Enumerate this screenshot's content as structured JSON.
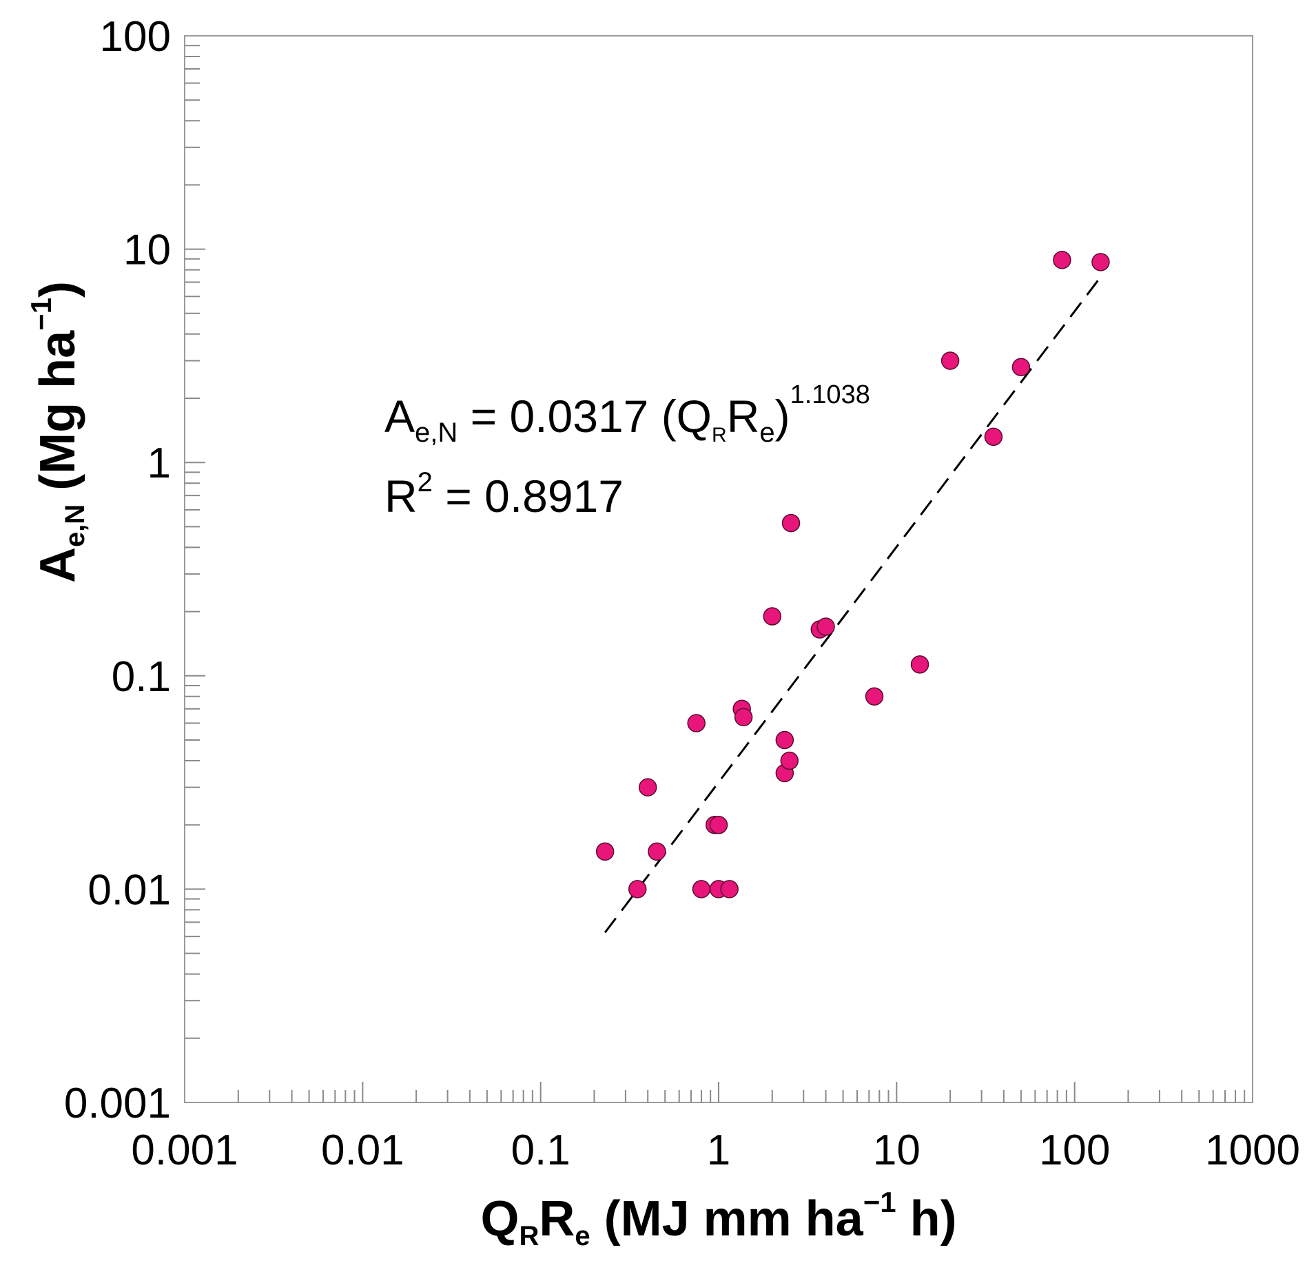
{
  "chart_data": {
    "type": "scatter",
    "x_scale": "log",
    "y_scale": "log",
    "xlim": [
      0.001,
      1000
    ],
    "ylim": [
      0.001,
      100
    ],
    "x_ticks": [
      "0.001",
      "0.01",
      "0.1",
      "1",
      "10",
      "100",
      "1000"
    ],
    "y_ticks": [
      "0.001",
      "0.01",
      "0.1",
      "1",
      "10",
      "100"
    ],
    "xlabel": {
      "main": "Q",
      "sub1": "R",
      "main2": "R",
      "sub2": "e",
      "rest": " (MJ mm  ha",
      "exp": "−1",
      "tail": " h)"
    },
    "ylabel": {
      "main": "A",
      "sub": "e,N",
      "rest": " (Mg ha",
      "exp": "−1",
      "tail": ")"
    },
    "equation": {
      "lhs": "A",
      "lhs_sub": "e,N",
      "mid": " = 0.0317 (Q",
      "q_sub": "R",
      "r": "R",
      "r_sub": "e",
      "close": ")",
      "exponent": "1.1038"
    },
    "r_squared": {
      "label": "R",
      "exp": "2",
      "value": " = 0.8917"
    },
    "fit": {
      "a": 0.0317,
      "b": 1.1038,
      "x_range": [
        0.23,
        145
      ],
      "style": "dashed",
      "color": "#000000"
    },
    "marker_color": "#e8157a",
    "series": [
      {
        "name": "observations",
        "points": [
          [
            0.23,
            0.015
          ],
          [
            0.35,
            0.01
          ],
          [
            0.4,
            0.03
          ],
          [
            0.45,
            0.015
          ],
          [
            0.75,
            0.06
          ],
          [
            0.8,
            0.01
          ],
          [
            0.95,
            0.02
          ],
          [
            1.0,
            0.02
          ],
          [
            1.0,
            0.01
          ],
          [
            1.15,
            0.01
          ],
          [
            1.35,
            0.07
          ],
          [
            1.38,
            0.064
          ],
          [
            2.0,
            0.19
          ],
          [
            2.35,
            0.05
          ],
          [
            2.35,
            0.035
          ],
          [
            2.5,
            0.04
          ],
          [
            2.55,
            0.52
          ],
          [
            3.7,
            0.165
          ],
          [
            4.0,
            0.17
          ],
          [
            7.5,
            0.08
          ],
          [
            13.5,
            0.113
          ],
          [
            20,
            3.0
          ],
          [
            35,
            1.32
          ],
          [
            50,
            2.8
          ],
          [
            85,
            8.9
          ],
          [
            140,
            8.7
          ]
        ]
      }
    ]
  }
}
